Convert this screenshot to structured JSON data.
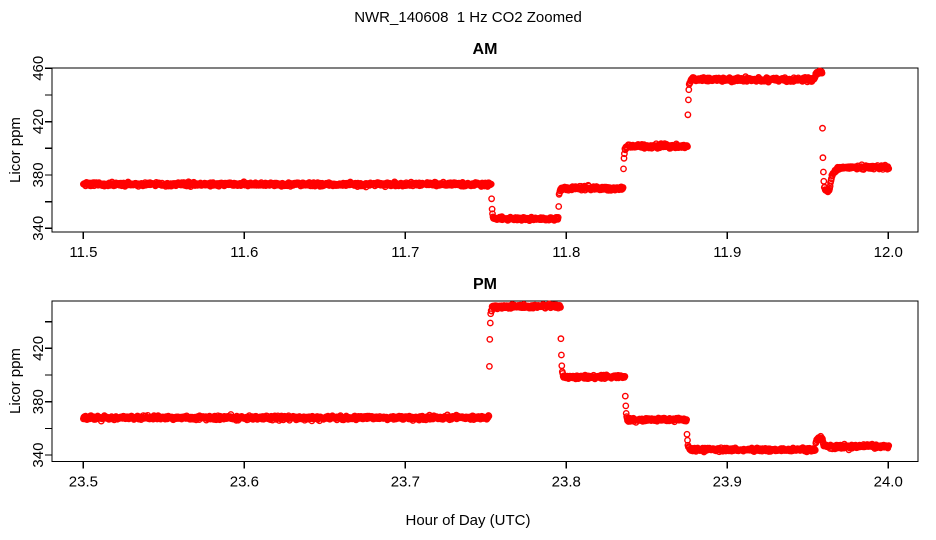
{
  "page": {
    "title": "NWR_140608  1 Hz CO2 Zoomed",
    "background_color": "#FFFFFF",
    "axis_color": "#000000",
    "point_color": "#FF0000"
  },
  "chart_data": [
    {
      "type": "scatter",
      "panel": "top",
      "title": "AM",
      "ylabel": "Licor ppm",
      "xlabel": "",
      "marker": "open-circle",
      "color": "#FF0000",
      "sample_rate_hz": 1,
      "grid": false,
      "legend": "none",
      "xlim": [
        11.4805,
        12.0185
      ],
      "ylim": [
        337.2,
        460.2
      ],
      "xticks": [
        11.5,
        11.6,
        11.7,
        11.8,
        11.9,
        12.0
      ],
      "xtick_labels": [
        "11.5",
        "11.6",
        "11.7",
        "11.8",
        "11.9",
        "12.0"
      ],
      "yticks": [
        340,
        360,
        380,
        400,
        420,
        440,
        460
      ],
      "ytick_labels": [
        "340",
        "",
        "380",
        "",
        "420",
        "",
        "460"
      ],
      "noise_sd_ppm": 0.7,
      "transition_tau_s": 1.6,
      "segments": [
        {
          "t0": 11.5,
          "t1": 11.7535,
          "v": 373.0
        },
        {
          "t0": 11.757,
          "t1": 11.795,
          "v": 347.0
        },
        {
          "t0": 11.7985,
          "t1": 11.8355,
          "v": 370.0
        },
        {
          "t0": 11.839,
          "t1": 11.8755,
          "v": 401.5
        },
        {
          "t0": 11.879,
          "t1": 11.9545,
          "v": 451.5
        },
        {
          "t0": 11.9558,
          "t1": 11.959,
          "v": 457.0
        },
        {
          "t0": 11.9606,
          "t1": 11.9636,
          "v": 368.0
        },
        {
          "t0": 11.9666,
          "t1": 12.0003,
          "v": 385.5,
          "tau_s": 7
        }
      ]
    },
    {
      "type": "scatter",
      "panel": "bottom",
      "title": "PM",
      "ylabel": "Licor ppm",
      "xlabel": "Hour of Day (UTC)",
      "marker": "open-circle",
      "color": "#FF0000",
      "sample_rate_hz": 1,
      "grid": false,
      "legend": "none",
      "xlim": [
        23.4805,
        24.0185
      ],
      "ylim": [
        335.2,
        455.5
      ],
      "xticks": [
        23.5,
        23.6,
        23.7,
        23.8,
        23.9,
        24.0
      ],
      "xtick_labels": [
        "23.5",
        "23.6",
        "23.7",
        "23.8",
        "23.9",
        "24.0"
      ],
      "yticks": [
        340,
        360,
        380,
        400,
        420,
        440
      ],
      "ytick_labels": [
        "340",
        "",
        "380",
        "",
        "420",
        ""
      ],
      "noise_sd_ppm": 0.7,
      "transition_tau_s": 1.6,
      "segments": [
        {
          "t0": 23.5,
          "t1": 23.752,
          "v": 368.0
        },
        {
          "t0": 23.7558,
          "t1": 23.7965,
          "v": 451.5
        },
        {
          "t0": 23.7998,
          "t1": 23.8365,
          "v": 398.5
        },
        {
          "t0": 23.8398,
          "t1": 23.875,
          "v": 366.5
        },
        {
          "t0": 23.8782,
          "t1": 23.9548,
          "v": 344.0
        },
        {
          "t0": 23.9562,
          "t1": 23.9592,
          "v": 352.5
        },
        {
          "t0": 23.9612,
          "t1": 24.0003,
          "v": 346.5
        }
      ]
    }
  ]
}
